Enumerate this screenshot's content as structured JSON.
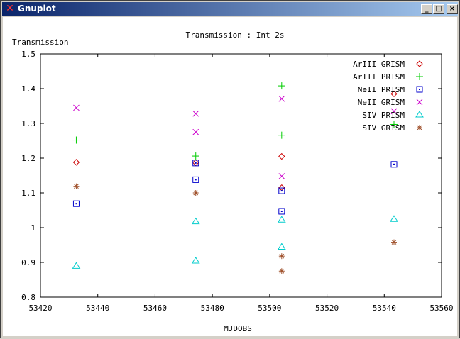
{
  "window": {
    "title": "Gnuplot",
    "icon": "x-close-icon",
    "buttons": {
      "minimize": "_",
      "maximize": "□",
      "close": "×"
    }
  },
  "chart_data": {
    "type": "scatter",
    "title": "Transmission : Int 2s",
    "xlabel": "MJDOBS",
    "ylabel": "Transmission",
    "xlim": [
      53420,
      53560
    ],
    "ylim": [
      0.8,
      1.5
    ],
    "xticks": [
      "53420",
      "53440",
      "53460",
      "53480",
      "53500",
      "53520",
      "53540",
      "53560"
    ],
    "yticks": [
      "0.8",
      "0.9",
      "1",
      "1.1",
      "1.2",
      "1.3",
      "1.4",
      "1.5"
    ],
    "grid": false,
    "legend_position": "top-right",
    "series": [
      {
        "name": "ArIII GRISM",
        "marker": "diamond",
        "color": "#cc0000",
        "points": [
          [
            53432.5,
            1.188
          ],
          [
            53474.2,
            1.187
          ],
          [
            53504.2,
            1.205
          ],
          [
            53504.2,
            1.115
          ],
          [
            53543.4,
            1.385
          ]
        ]
      },
      {
        "name": "ArIII PRISM",
        "marker": "plus",
        "color": "#00cc00",
        "points": [
          [
            53432.5,
            1.252
          ],
          [
            53474.2,
            1.206
          ],
          [
            53504.2,
            1.408
          ],
          [
            53504.2,
            1.266
          ],
          [
            53543.4,
            1.297
          ]
        ]
      },
      {
        "name": "NeII PRISM",
        "marker": "square",
        "color": "#0000cc",
        "points": [
          [
            53432.5,
            1.069
          ],
          [
            53474.2,
            1.186
          ],
          [
            53474.2,
            1.138
          ],
          [
            53504.2,
            1.106
          ],
          [
            53504.2,
            1.047
          ],
          [
            53543.4,
            1.182
          ]
        ]
      },
      {
        "name": "NeII GRISM",
        "marker": "cross",
        "color": "#cc00cc",
        "points": [
          [
            53432.5,
            1.345
          ],
          [
            53474.2,
            1.328
          ],
          [
            53474.2,
            1.275
          ],
          [
            53504.2,
            1.371
          ],
          [
            53504.2,
            1.148
          ],
          [
            53543.4,
            1.335
          ]
        ]
      },
      {
        "name": "SIV PRISM",
        "marker": "triangle",
        "color": "#00cccc",
        "points": [
          [
            53432.5,
            0.889
          ],
          [
            53474.2,
            1.017
          ],
          [
            53474.2,
            0.904
          ],
          [
            53504.2,
            1.022
          ],
          [
            53504.2,
            0.944
          ],
          [
            53543.4,
            1.024
          ]
        ]
      },
      {
        "name": "SIV GRISM",
        "marker": "star",
        "color": "#a0522d",
        "points": [
          [
            53432.5,
            1.119
          ],
          [
            53474.2,
            1.1
          ],
          [
            53504.2,
            0.918
          ],
          [
            53504.2,
            0.875
          ],
          [
            53543.4,
            0.958
          ]
        ]
      }
    ]
  }
}
